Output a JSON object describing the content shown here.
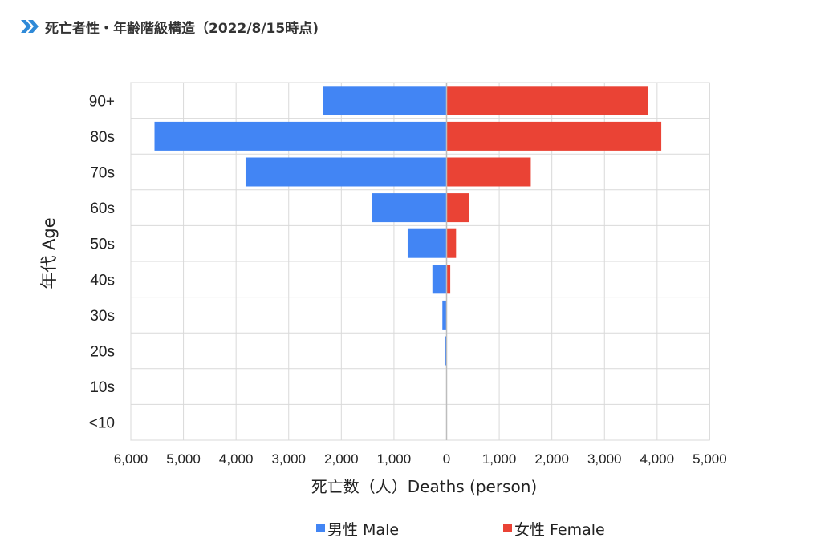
{
  "header": {
    "title": "死亡者性・年齢階級構造（2022/8/15時点)",
    "icon": "double-chevron-right-icon",
    "icon_color": "#2f8ad8"
  },
  "chart_data": {
    "type": "bar",
    "orientation": "horizontal-population-pyramid",
    "categories": [
      "90+",
      "80s",
      "70s",
      "60s",
      "50s",
      "40s",
      "30s",
      "20s",
      "10s",
      "<10"
    ],
    "series": [
      {
        "name": "男性 Male",
        "color": "#4285f4",
        "values": [
          2350,
          5550,
          3820,
          1420,
          740,
          270,
          80,
          20,
          0,
          0
        ]
      },
      {
        "name": "女性 Female",
        "color": "#ea4335",
        "values": [
          3830,
          4080,
          1600,
          420,
          180,
          70,
          0,
          0,
          0,
          0
        ]
      }
    ],
    "xlabel": "死亡数（人）Deaths (person)",
    "ylabel": "年代 Age",
    "xlim_male": [
      0,
      6000
    ],
    "xlim_female": [
      0,
      5000
    ],
    "xticks": [
      "6,000",
      "5,000",
      "4,000",
      "3,000",
      "2,000",
      "1,000",
      "0",
      "1,000",
      "2,000",
      "3,000",
      "4,000",
      "5,000"
    ],
    "grid": true,
    "legend_position": "bottom"
  }
}
